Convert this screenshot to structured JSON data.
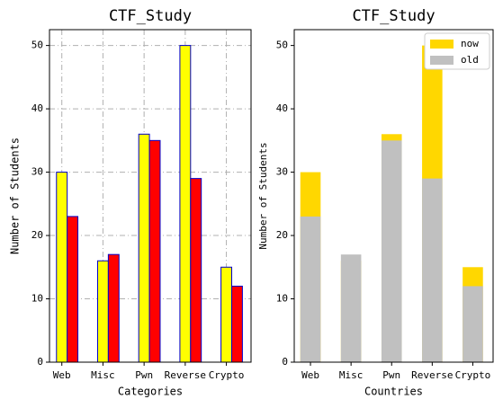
{
  "chart_data": [
    {
      "type": "bar",
      "barmode": "group",
      "title": "CTF_Study",
      "xlabel": "Categories",
      "ylabel": "Number of Students",
      "categories": [
        "Web",
        "Misc",
        "Pwn",
        "Reverse",
        "Crypto"
      ],
      "series": [
        {
          "name": "now",
          "color": "#ffff00",
          "edgecolor": "#0000cc",
          "values": [
            30,
            16,
            36,
            50,
            15
          ]
        },
        {
          "name": "old",
          "color": "#ff0000",
          "edgecolor": "#0000cc",
          "values": [
            23,
            17,
            35,
            29,
            12
          ]
        }
      ],
      "ylim": [
        0,
        52.5
      ],
      "yticks": [
        0,
        10,
        20,
        30,
        40,
        50
      ],
      "grid": true,
      "legend": false
    },
    {
      "type": "bar",
      "barmode": "overlay",
      "title": "CTF_Study",
      "xlabel": "Countries",
      "ylabel": "Number of Students",
      "categories": [
        "Web",
        "Misc",
        "Pwn",
        "Reverse",
        "Crypto"
      ],
      "series": [
        {
          "name": "now",
          "color": "#ffd700",
          "values": [
            30,
            16,
            36,
            50,
            15
          ]
        },
        {
          "name": "old",
          "color": "#c0c0c0",
          "values": [
            23,
            17,
            35,
            29,
            12
          ]
        }
      ],
      "ylim": [
        0,
        52.5
      ],
      "yticks": [
        0,
        10,
        20,
        30,
        40,
        50
      ],
      "grid": false,
      "legend": "upper right"
    }
  ]
}
